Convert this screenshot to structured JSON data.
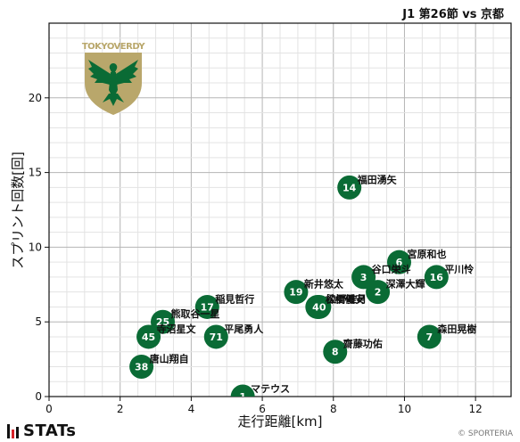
{
  "header": {
    "match": "J1 第26節 vs 京都"
  },
  "team_logo": {
    "text": "TOKYOVERDY"
  },
  "footer": {
    "brand": "STATs",
    "credit": "© SPORTERIA"
  },
  "colors": {
    "marker": "#0a6b35",
    "marker_text": "#ffffff",
    "grid": "#cfcfcf",
    "logo_gold": "#b9a76b"
  },
  "chart_data": {
    "type": "scatter",
    "xlabel": "走行距離[km]",
    "ylabel": "スプリント回数[回]",
    "xlim": [
      0,
      13
    ],
    "ylim": [
      0,
      25
    ],
    "xticks": [
      0,
      2,
      4,
      6,
      8,
      10,
      12
    ],
    "yticks": [
      0,
      5,
      10,
      15,
      20
    ],
    "grid": true,
    "points": [
      {
        "number": "14",
        "name": "福田湧矢",
        "x": 8.45,
        "y": 14
      },
      {
        "number": "6",
        "name": "宮原和也",
        "x": 9.85,
        "y": 9
      },
      {
        "number": "16",
        "name": "平川怜",
        "x": 10.9,
        "y": 8
      },
      {
        "number": "3",
        "name": "谷口栄斗",
        "x": 8.85,
        "y": 8
      },
      {
        "number": "2",
        "name": "深澤大輝",
        "x": 9.25,
        "y": 7
      },
      {
        "number": "19",
        "name": "新井悠太",
        "x": 6.95,
        "y": 7
      },
      {
        "number": "4",
        "name": "松橋優安",
        "x": 7.55,
        "y": 6
      },
      {
        "number": "40",
        "name": "染野唯月",
        "x": 7.6,
        "y": 6
      },
      {
        "number": "17",
        "name": "稲見哲行",
        "x": 4.45,
        "y": 6
      },
      {
        "number": "25",
        "name": "熊取谷一星",
        "x": 3.2,
        "y": 5
      },
      {
        "number": "45",
        "name": "寺沼星文",
        "x": 2.8,
        "y": 4
      },
      {
        "number": "71",
        "name": "平尾勇人",
        "x": 4.7,
        "y": 4
      },
      {
        "number": "7",
        "name": "森田晃樹",
        "x": 10.7,
        "y": 4
      },
      {
        "number": "8",
        "name": "齋藤功佑",
        "x": 8.05,
        "y": 3
      },
      {
        "number": "38",
        "name": "唐山翔自",
        "x": 2.6,
        "y": 2
      },
      {
        "number": "1",
        "name": "マテウス",
        "x": 5.45,
        "y": 0
      }
    ]
  }
}
